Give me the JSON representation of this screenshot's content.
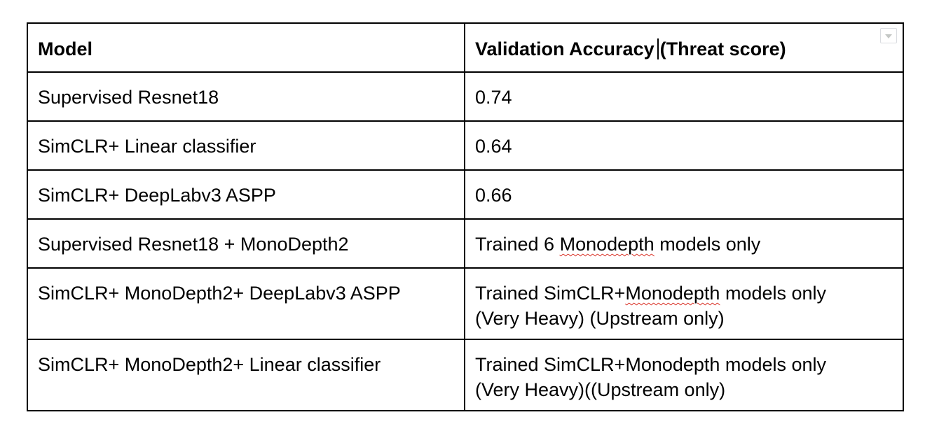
{
  "table": {
    "header": {
      "col1": "Model",
      "col2_before_cursor": "Validation Accuracy",
      "col2_after_cursor": "(Threat score)"
    },
    "rows": [
      {
        "model": "Supervised Resnet18",
        "accuracy": "0.74"
      },
      {
        "model": "SimCLR+ Linear classifier",
        "accuracy": "0.64"
      },
      {
        "model": "SimCLR+ DeepLabv3 ASPP",
        "accuracy": "0.66"
      },
      {
        "model": "Supervised Resnet18 + MonoDepth2",
        "accuracy_pre": "Trained 6 ",
        "accuracy_flag": "Monodepth",
        "accuracy_post": " models only"
      },
      {
        "model": "SimCLR+ MonoDepth2+ DeepLabv3 ASPP",
        "accuracy_pre": "Trained SimCLR+",
        "accuracy_flag": "Monodepth",
        "accuracy_post": " models only",
        "accuracy_line2": "(Very Heavy) (Upstream only)"
      },
      {
        "model": "SimCLR+ MonoDepth2+ Linear classifier",
        "accuracy_line1": "Trained SimCLR+Monodepth models only",
        "accuracy_line2": "(Very Heavy)((Upstream only)"
      }
    ]
  },
  "icons": {
    "table_menu": "dropdown-arrow-icon"
  },
  "colors": {
    "border": "#000000",
    "spellcheck_underline": "#d93025",
    "dropdown_border": "#dadce0"
  }
}
